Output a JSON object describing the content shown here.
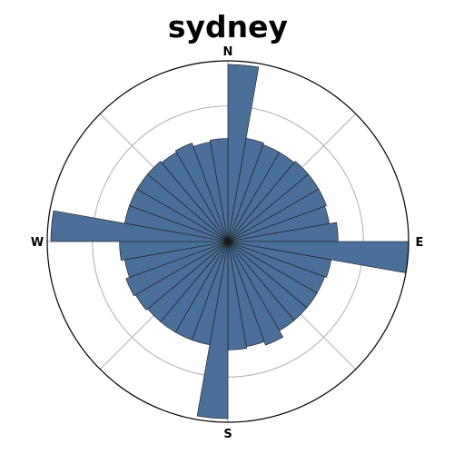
{
  "chart_data": {
    "type": "bar",
    "subtype": "polar-rose",
    "title": "sydney",
    "direction_labels": [
      "N",
      "E",
      "S",
      "W"
    ],
    "sector_count": 36,
    "sector_width_deg": 10,
    "sector_centers_deg": [
      5,
      15,
      25,
      35,
      45,
      55,
      65,
      75,
      85,
      95,
      105,
      115,
      125,
      135,
      145,
      155,
      165,
      175,
      185,
      195,
      205,
      215,
      225,
      235,
      245,
      255,
      265,
      275,
      285,
      295,
      305,
      315,
      325,
      335,
      345,
      355
    ],
    "values": [
      0.98,
      0.58,
      0.57,
      0.57,
      0.58,
      0.58,
      0.58,
      0.57,
      0.61,
      1.0,
      0.58,
      0.57,
      0.57,
      0.57,
      0.57,
      0.61,
      0.59,
      0.6,
      0.98,
      0.58,
      0.58,
      0.58,
      0.58,
      0.59,
      0.6,
      0.58,
      0.6,
      0.98,
      0.58,
      0.58,
      0.58,
      0.58,
      0.57,
      0.58,
      0.56,
      0.57
    ],
    "rlim": [
      0,
      1
    ],
    "radial_grid": [
      0.25,
      0.5,
      0.75
    ],
    "angular_grid_deg": [
      0,
      45,
      90,
      135,
      180,
      225,
      270,
      315
    ],
    "grid": true,
    "bar_color": "#4a6f98",
    "edge_color": "#1a1a1a",
    "grid_color": "#b0b0b0"
  }
}
